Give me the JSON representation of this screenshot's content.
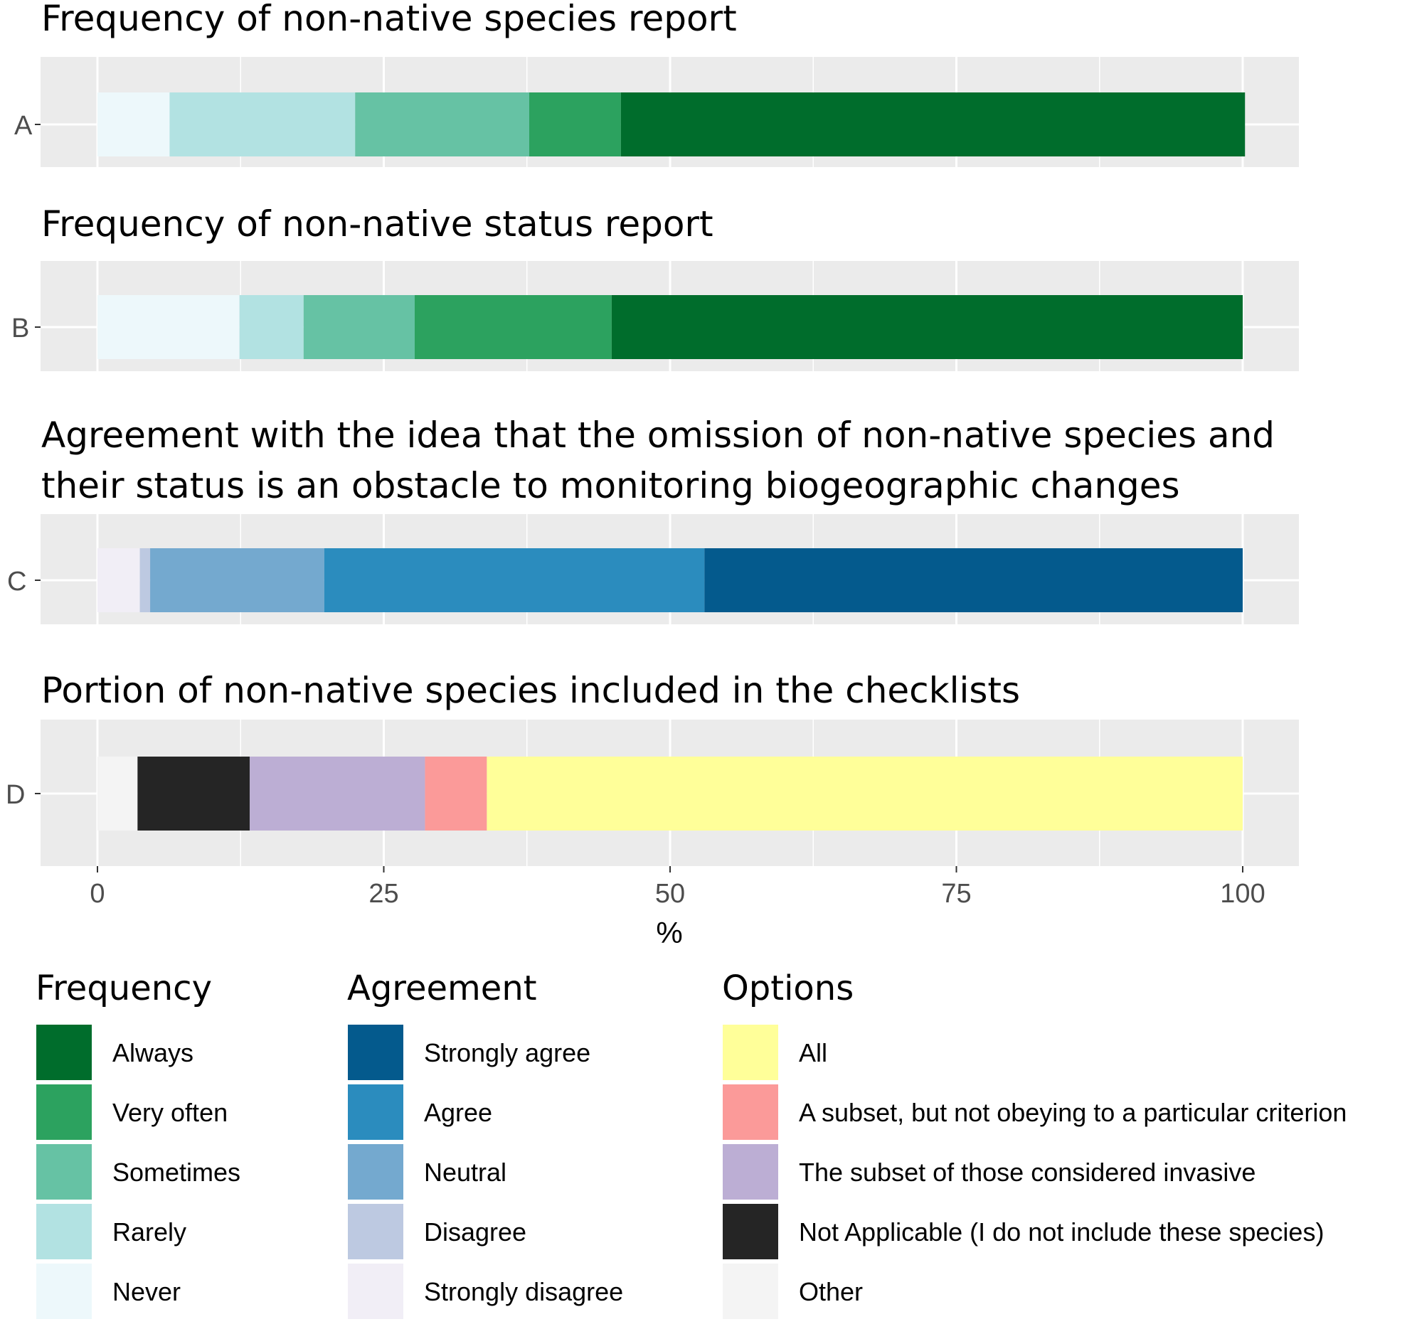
{
  "chart_data": {
    "type": "bar",
    "orientation": "horizontal",
    "stacked": true,
    "xlabel": "%",
    "xlim": [
      0,
      100
    ],
    "xticks": [
      0,
      25,
      50,
      75,
      100
    ],
    "grid": true,
    "legend_placement": "bottom",
    "panels": [
      {
        "category": "A",
        "title": "Frequency of non-native species report",
        "legend_group": "Frequency",
        "segments": [
          {
            "name": "Never",
            "value": 6.3,
            "color": "#edf8fb"
          },
          {
            "name": "Rarely",
            "value": 16.2,
            "color": "#b2e2e2"
          },
          {
            "name": "Sometimes",
            "value": 15.2,
            "color": "#66c2a4"
          },
          {
            "name": "Very often",
            "value": 8.0,
            "color": "#2ca25f"
          },
          {
            "name": "Always",
            "value": 54.5,
            "color": "#006d2c"
          }
        ]
      },
      {
        "category": "B",
        "title": "Frequency of non-native status report",
        "legend_group": "Frequency",
        "segments": [
          {
            "name": "Never",
            "value": 12.4,
            "color": "#edf8fb"
          },
          {
            "name": "Rarely",
            "value": 5.6,
            "color": "#b2e2e2"
          },
          {
            "name": "Sometimes",
            "value": 9.7,
            "color": "#66c2a4"
          },
          {
            "name": "Very often",
            "value": 17.2,
            "color": "#2ca25f"
          },
          {
            "name": "Always",
            "value": 55.1,
            "color": "#006d2c"
          }
        ]
      },
      {
        "category": "C",
        "title": [
          "Agreement with the idea that the omission of non-native species and",
          "their status is an obstacle to monitoring biogeographic changes"
        ],
        "legend_group": "Agreement",
        "segments": [
          {
            "name": "Strongly disagree",
            "value": 3.7,
            "color": "#f1eef6"
          },
          {
            "name": "Disagree",
            "value": 0.9,
            "color": "#bdc9e1"
          },
          {
            "name": "Neutral",
            "value": 15.2,
            "color": "#74a9cf"
          },
          {
            "name": "Agree",
            "value": 33.2,
            "color": "#2b8cbe"
          },
          {
            "name": "Strongly agree",
            "value": 47.0,
            "color": "#045a8d"
          }
        ]
      },
      {
        "category": "D",
        "title": "Portion of non-native species included in the checklists",
        "legend_group": "Options",
        "segments": [
          {
            "name": "Other",
            "value": 3.5,
            "color": "#f4f4f4"
          },
          {
            "name": "Not Applicable (I do not include these species)",
            "value": 9.8,
            "color": "#252525"
          },
          {
            "name": "The subset of those considered invasive",
            "value": 15.3,
            "color": "#bcaed4"
          },
          {
            "name": "A subset, but not obeying to a particular criterion",
            "value": 5.4,
            "color": "#fb9a99"
          },
          {
            "name": "All",
            "value": 66.0,
            "color": "#ffff99"
          }
        ]
      }
    ],
    "legends": [
      {
        "title": "Frequency",
        "items": [
          {
            "label": "Always",
            "color": "#006d2c"
          },
          {
            "label": "Very often",
            "color": "#2ca25f"
          },
          {
            "label": "Sometimes",
            "color": "#66c2a4"
          },
          {
            "label": "Rarely",
            "color": "#b2e2e2"
          },
          {
            "label": "Never",
            "color": "#edf8fb"
          }
        ]
      },
      {
        "title": "Agreement",
        "items": [
          {
            "label": "Strongly agree",
            "color": "#045a8d"
          },
          {
            "label": "Agree",
            "color": "#2b8cbe"
          },
          {
            "label": "Neutral",
            "color": "#74a9cf"
          },
          {
            "label": "Disagree",
            "color": "#bdc9e1"
          },
          {
            "label": "Strongly disagree",
            "color": "#f1eef6"
          }
        ]
      },
      {
        "title": "Options",
        "items": [
          {
            "label": "All",
            "color": "#ffff99"
          },
          {
            "label": "A subset, but not obeying to a particular criterion",
            "color": "#fb9a99"
          },
          {
            "label": "The subset of those considered invasive",
            "color": "#bcaed4"
          },
          {
            "label": "Not Applicable (I do not include these species)",
            "color": "#252525"
          },
          {
            "label": "Other",
            "color": "#f4f4f4"
          }
        ]
      }
    ]
  }
}
